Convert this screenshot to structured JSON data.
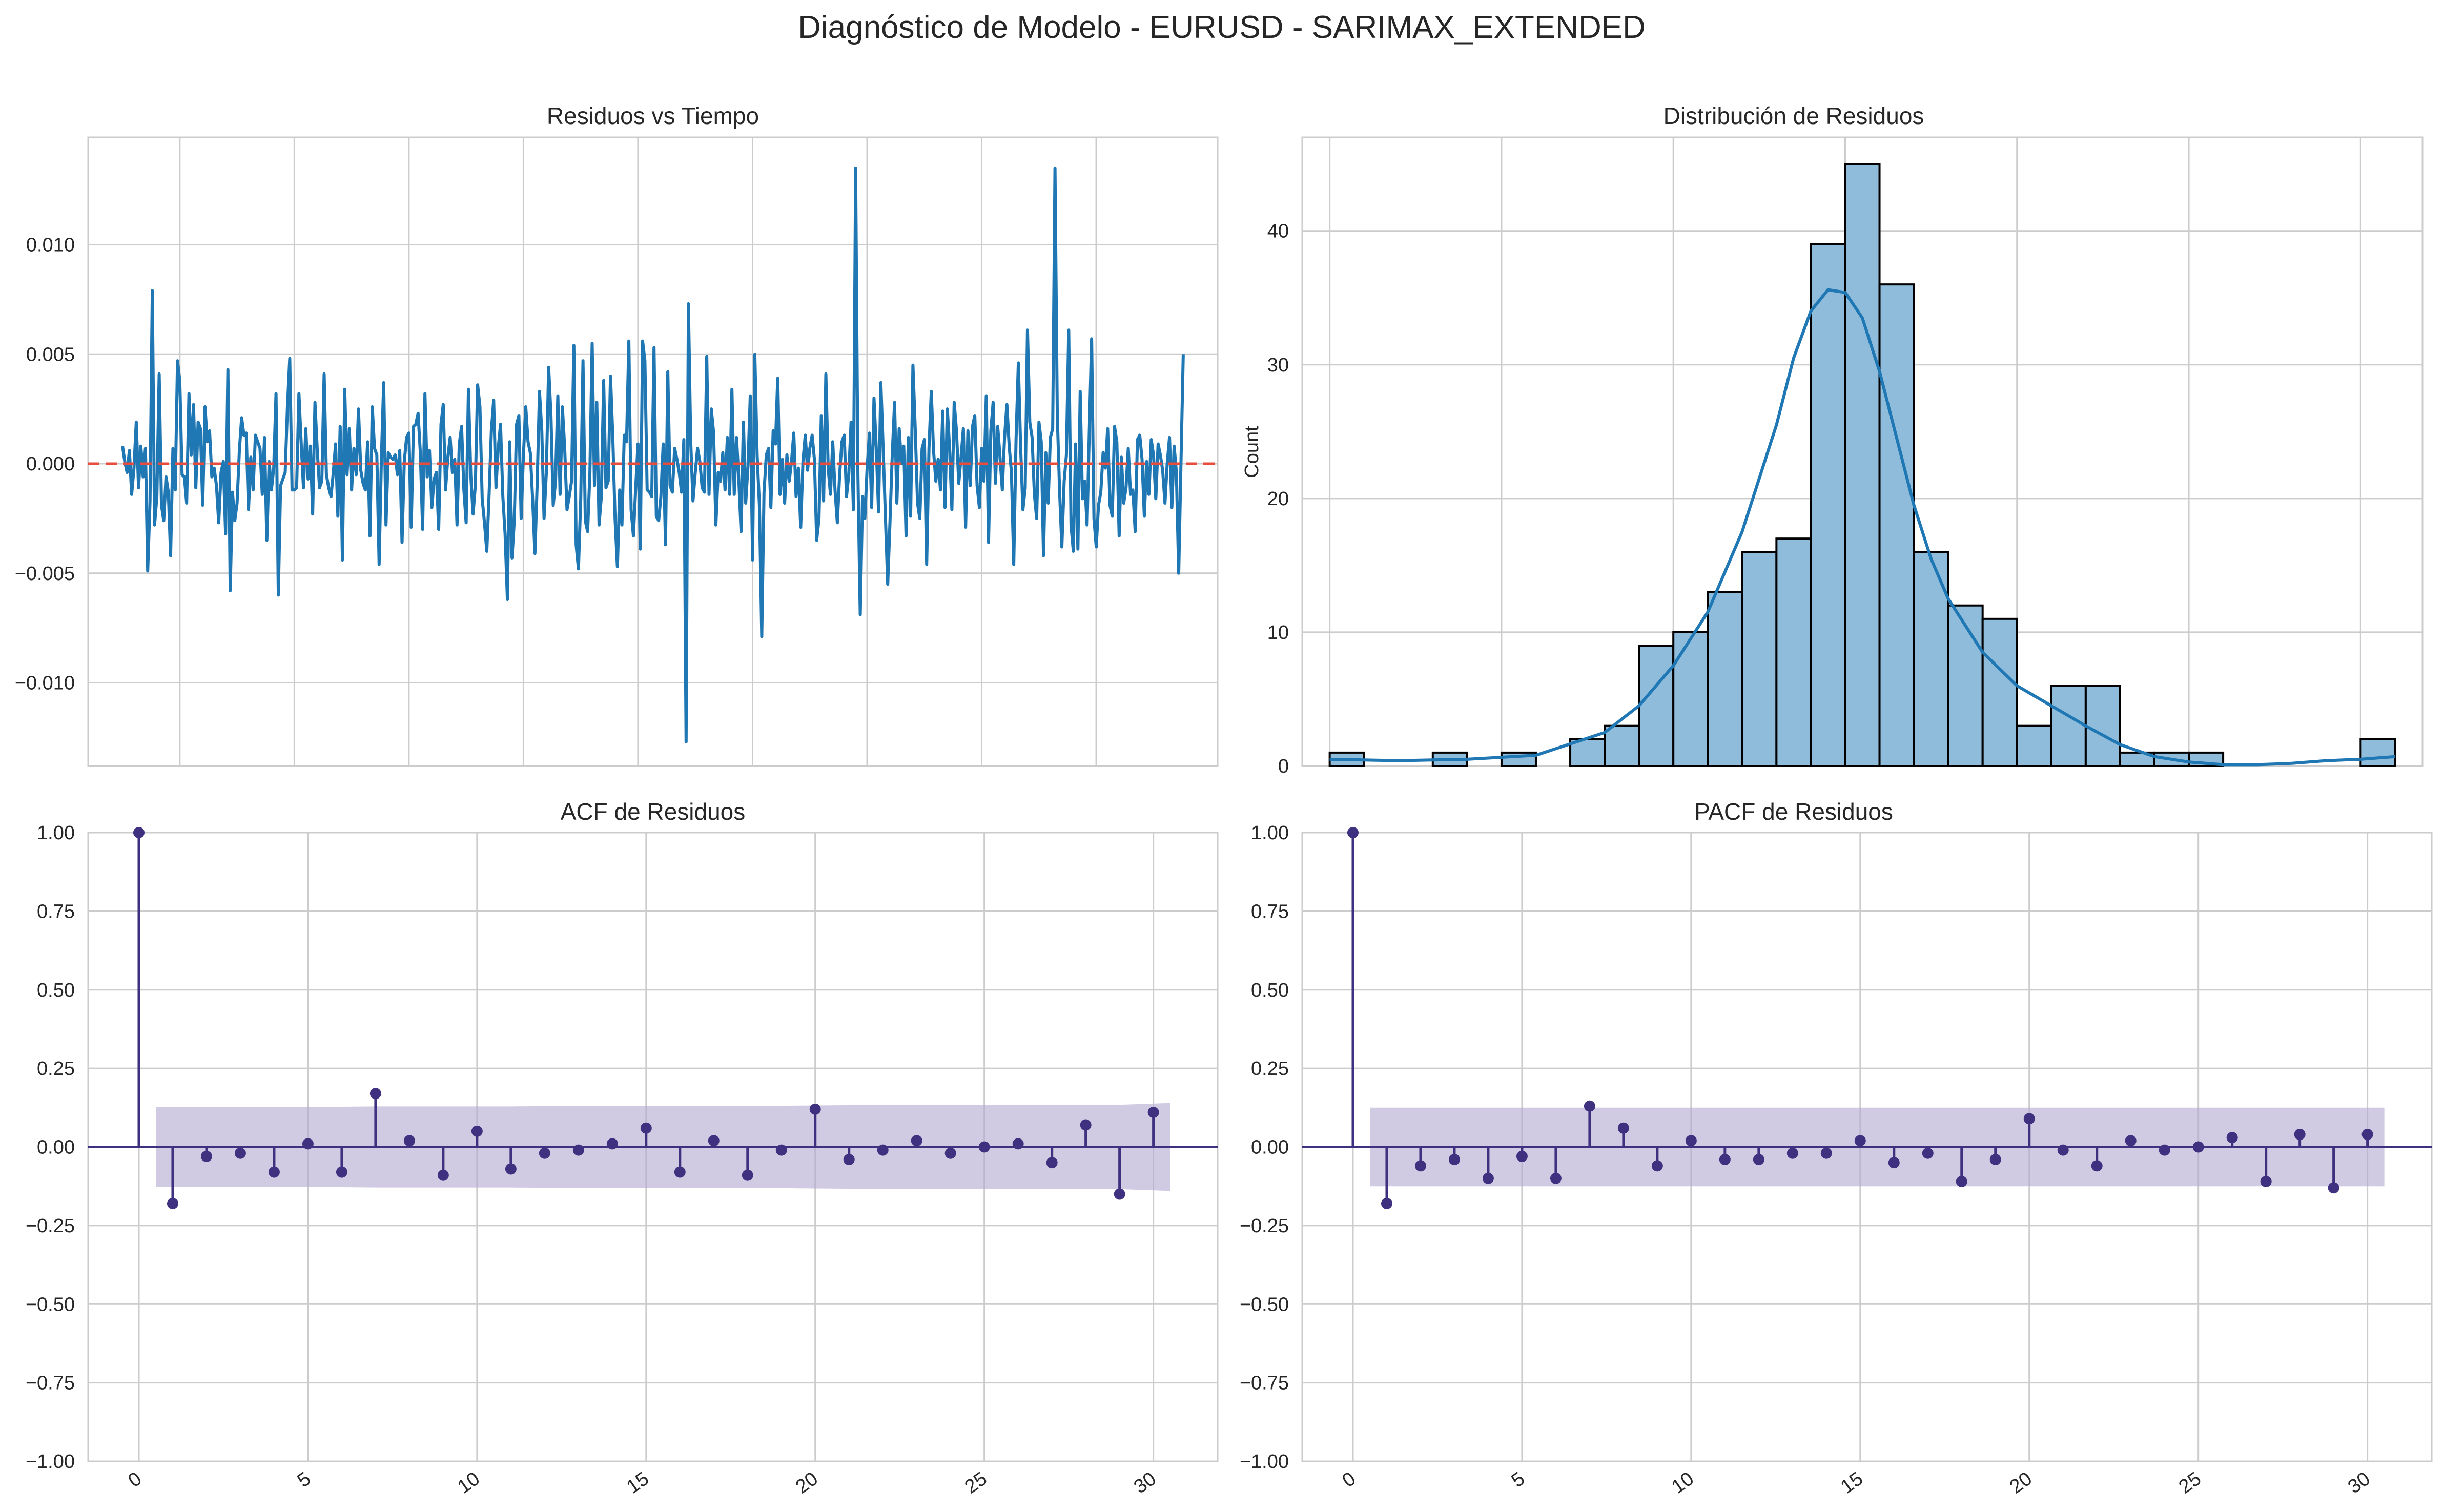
{
  "figure": {
    "title": "Diagnóstico de Modelo - EURUSD - SARIMAX_EXTENDED"
  },
  "chart_data": [
    {
      "id": "residuals",
      "type": "line",
      "title": "Residuos vs Tiempo",
      "xlabel": "",
      "ylabel": "",
      "ylim": [
        -0.0138,
        0.0149
      ],
      "y_ticks": [
        -0.01,
        -0.005,
        0.0,
        0.005,
        0.01
      ],
      "y_tick_labels": [
        "−0.010",
        "−0.005",
        "0.000",
        "0.005",
        "0.010"
      ],
      "grid": true,
      "reference_line": {
        "y": 0.0,
        "style": "dashed",
        "color": "#e74c3c"
      },
      "series_color": "#1f77b4",
      "values": [
        0.0008,
        0.0001,
        -0.0004,
        0.0006,
        -0.0014,
        -0.0002,
        0.0019,
        -0.0011,
        0.0008,
        -0.0006,
        0.0007,
        -0.0049,
        -0.0017,
        0.0079,
        -0.0028,
        -0.0015,
        0.0041,
        -0.0019,
        -0.0026,
        -0.0006,
        -0.0013,
        -0.0042,
        0.0007,
        -0.0012,
        0.0047,
        0.0038,
        -0.0005,
        -0.0006,
        -0.0018,
        0.0032,
        0.0004,
        0.0027,
        -0.0011,
        0.0019,
        0.0016,
        -0.0019,
        0.0026,
        0.001,
        0.0015,
        -0.0006,
        -0.0002,
        -0.001,
        -0.0027,
        -0.0004,
        0.0001,
        -0.0032,
        0.0043,
        -0.0058,
        -0.0013,
        -0.0026,
        -0.0018,
        0.0006,
        0.0021,
        0.0013,
        0.0014,
        -0.0021,
        0.0003,
        -0.0012,
        0.0013,
        0.001,
        0.0007,
        -0.0014,
        0.0012,
        -0.0035,
        0.0001,
        -0.0012,
        -0.0002,
        0.0032,
        -0.006,
        -0.001,
        -0.0007,
        -0.0004,
        0.0026,
        0.0048,
        -0.0012,
        -0.0012,
        -0.0011,
        0.0032,
        0.0009,
        -0.0011,
        0.0016,
        -0.0007,
        0.0008,
        -0.0023,
        0.0028,
        0.0006,
        -0.0011,
        -0.0008,
        0.0041,
        -0.0005,
        -0.0011,
        -0.0015,
        -0.0004,
        0.0009,
        -0.0024,
        0.0017,
        -0.0044,
        0.0034,
        -0.0005,
        0.0016,
        -0.0012,
        0.0007,
        -0.0005,
        0.0025,
        -0.0003,
        -0.0009,
        -0.0012,
        0.001,
        -0.0033,
        0.0026,
        0.0007,
        0.0004,
        -0.0046,
        0.0002,
        0.0037,
        -0.0028,
        0.0005,
        0.0003,
        0.0002,
        0.0004,
        -0.0005,
        0.0006,
        -0.0036,
        0.0001,
        0.0012,
        0.0014,
        -0.0029,
        0.0017,
        0.0018,
        0.0023,
        0.0005,
        -0.003,
        0.0032,
        -0.0006,
        0.0006,
        -0.002,
        -0.0007,
        -0.0004,
        -0.003,
        0.0018,
        0.0027,
        -0.0012,
        0.0003,
        0.0012,
        -0.0004,
        0.0002,
        -0.0028,
        0.0009,
        0.0017,
        -0.0012,
        -0.0027,
        0.0034,
        -0.0005,
        -0.0023,
        -0.001,
        0.0036,
        0.0026,
        -0.0016,
        -0.0027,
        -0.004,
        -0.0014,
        0.0015,
        0.0029,
        -0.0011,
        0.0007,
        0.0018,
        -0.0015,
        -0.0032,
        -0.0062,
        0.001,
        -0.0043,
        -0.0026,
        0.0018,
        0.0022,
        -0.0025,
        0.0004,
        0.0026,
        0.001,
        0.0005,
        -0.0016,
        -0.0041,
        -0.0009,
        0.0033,
        0.0015,
        -0.0025,
        -0.0004,
        0.0044,
        0.0022,
        -0.0019,
        -0.0008,
        0.0031,
        -0.0014,
        0.0026,
        0.0007,
        -0.0021,
        -0.0015,
        -0.0008,
        0.0054,
        -0.0037,
        -0.0048,
        -0.0016,
        0.0047,
        -0.0026,
        -0.0031,
        -0.0004,
        0.0055,
        -0.001,
        0.0028,
        -0.0028,
        -0.0015,
        0.0038,
        -0.0011,
        -0.0008,
        0.004,
        0.0012,
        -0.0025,
        -0.0047,
        -0.0012,
        -0.0028,
        0.0013,
        0.001,
        0.0056,
        -0.0021,
        -0.0033,
        -0.0011,
        0.0009,
        -0.0039,
        0.0056,
        0.0047,
        -0.0012,
        -0.0013,
        -0.0015,
        0.0053,
        -0.0024,
        -0.0026,
        -0.0015,
        0.0009,
        -0.0037,
        0.0042,
        -0.001,
        -0.0013,
        0.0007,
        0.0002,
        -0.0004,
        -0.0013,
        0.0011,
        -0.0127,
        0.0073,
        0.001,
        -0.0017,
        -0.0004,
        0.0007,
        0.0001,
        -0.0011,
        -0.0013,
        0.0049,
        -0.0014,
        0.0025,
        0.0014,
        -0.0028,
        -0.0004,
        -0.0008,
        0.0005,
        -0.0012,
        0.0012,
        -0.0014,
        0.0034,
        -0.0014,
        0.0012,
        -0.0007,
        -0.0031,
        0.0019,
        -0.0018,
        -0.0001,
        0.0031,
        -0.0044,
        0.005,
        0.0004,
        -0.0019,
        -0.0079,
        -0.0013,
        0.0004,
        0.0007,
        -0.002,
        0.0015,
        0.0009,
        0.0039,
        -0.0014,
        0.0002,
        -0.0018,
        0.0004,
        -0.0008,
        0.0001,
        0.0014,
        -0.0015,
        -0.0002,
        -0.0029,
        0.0001,
        0.0013,
        -0.0003,
        0.0007,
        0.0013,
        0.0002,
        -0.0035,
        -0.0025,
        0.0022,
        -0.0017,
        0.0041,
        -0.0002,
        -0.0014,
        0.001,
        -0.0012,
        -0.0027,
        -0.0005,
        0.001,
        0.0013,
        -0.0015,
        -0.0005,
        0.0019,
        -0.0021,
        0.0135,
        -0.0005,
        -0.0069,
        -0.0015,
        -0.0025,
        -0.0002,
        0.0014,
        -0.002,
        0.003,
        0.0007,
        -0.0022,
        0.0037,
        0.0007,
        -0.0025,
        -0.0055,
        -0.0026,
        0.0005,
        0.0028,
        -0.0018,
        0.0016,
        0.0,
        0.0008,
        -0.0033,
        0.0012,
        -0.0024,
        0.0045,
        0.0016,
        -0.0018,
        -0.0025,
        0.0007,
        0.0011,
        -0.0046,
        0.0007,
        0.0033,
        0.0006,
        -0.0008,
        0.0002,
        -0.0012,
        0.0024,
        -0.002,
        0.0025,
        0.0007,
        -0.0021,
        0.0028,
        0.0015,
        -0.0009,
        0.0003,
        0.0016,
        -0.0029,
        0.0015,
        -0.001,
        0.0017,
        0.0022,
        -0.001,
        -0.002,
        0.0007,
        -0.0008,
        0.0031,
        -0.0036,
        0.0015,
        0.0028,
        -0.0009,
        0.0017,
        0.0003,
        -0.0012,
        0.0012,
        0.0027,
        0.0008,
        -0.0004,
        -0.0046,
        0.0011,
        0.0046,
        0.0008,
        -0.0021,
        -0.0011,
        0.0061,
        0.0019,
        0.0012,
        -0.0014,
        -0.0025,
        0.0019,
        0.001,
        -0.0042,
        0.0005,
        -0.0018,
        0.0012,
        0.0016,
        0.0135,
        0.0022,
        -0.0012,
        -0.0038,
        -0.0008,
        0.0004,
        0.0061,
        -0.0028,
        -0.004,
        0.0009,
        -0.0039,
        0.0033,
        -0.0016,
        -0.0008,
        -0.0028,
        0.0015,
        0.0057,
        -0.0025,
        -0.0038,
        -0.0019,
        -0.0013,
        0.0005,
        -0.0002,
        0.0016,
        -0.0019,
        -0.0024,
        0.0017,
        0.001,
        -0.0033,
        0.0003,
        -0.0018,
        -0.0011,
        0.0007,
        -0.0014,
        -0.0012,
        -0.0031,
        0.0011,
        0.0013,
        0.0002,
        -0.0024,
        0.0001,
        -0.0014,
        0.0011,
        0.0004,
        -0.0016,
        0.0009,
        0.0004,
        -0.0003,
        -0.0018,
        0.0,
        0.0012,
        -0.002,
        0.0008,
        -0.0004,
        -0.005,
        0.0001,
        0.005
      ]
    },
    {
      "id": "distribution",
      "type": "bar",
      "title": "Distribución de Residuos",
      "xlabel": "",
      "ylabel": "Count",
      "ylim": [
        0,
        47
      ],
      "y_ticks": [
        0,
        10,
        20,
        30,
        40
      ],
      "y_tick_labels": [
        "0",
        "10",
        "20",
        "30",
        "40"
      ],
      "x_grid_values": [
        0,
        5,
        10,
        15,
        20,
        25,
        30
      ],
      "xlim": [
        -0.8,
        31.8
      ],
      "bin_edges": [
        0,
        1,
        2,
        3,
        4,
        5,
        6,
        7,
        8,
        9,
        10,
        11,
        12,
        13,
        14,
        15,
        16,
        17,
        18,
        19,
        20,
        21,
        22,
        23,
        24,
        25,
        26,
        27,
        28,
        29,
        30,
        31
      ],
      "counts": [
        1,
        0,
        0,
        1,
        0,
        1,
        0,
        2,
        3,
        9,
        10,
        13,
        16,
        17,
        39,
        45,
        36,
        16,
        12,
        11,
        3,
        6,
        6,
        1,
        1,
        1,
        0,
        0,
        0,
        0,
        2
      ],
      "grid": true,
      "bar_color": "#8fbcdb",
      "edge_color": "#000000",
      "kde": {
        "color": "#1f77b4",
        "points": [
          [
            0,
            0.5
          ],
          [
            2,
            0.4
          ],
          [
            4,
            0.5
          ],
          [
            6,
            0.8
          ],
          [
            8,
            2.5
          ],
          [
            9,
            4.5
          ],
          [
            10,
            7.5
          ],
          [
            11,
            11.5
          ],
          [
            12,
            17.5
          ],
          [
            13,
            25.5
          ],
          [
            13.5,
            30.5
          ],
          [
            14,
            34
          ],
          [
            14.5,
            35.6
          ],
          [
            15,
            35.4
          ],
          [
            15.5,
            33.5
          ],
          [
            16,
            29.5
          ],
          [
            16.5,
            24.5
          ],
          [
            17,
            19.5
          ],
          [
            17.5,
            15.5
          ],
          [
            18,
            12.5
          ],
          [
            19,
            8.5
          ],
          [
            20,
            6
          ],
          [
            21,
            4.5
          ],
          [
            22,
            3
          ],
          [
            23,
            1.6
          ],
          [
            24,
            0.7
          ],
          [
            25,
            0.3
          ],
          [
            26,
            0.1
          ],
          [
            27,
            0.1
          ],
          [
            28,
            0.2
          ],
          [
            29,
            0.4
          ],
          [
            30,
            0.5
          ],
          [
            31,
            0.7
          ]
        ]
      }
    },
    {
      "id": "acf",
      "type": "scatter",
      "title": "ACF de Residuos",
      "xlabel": "",
      "ylabel": "",
      "xlim": [
        -1.5,
        31.9
      ],
      "ylim": [
        -1.0,
        1.0
      ],
      "x_ticks": [
        0,
        5,
        10,
        15,
        20,
        25,
        30
      ],
      "x_tick_labels": [
        "0",
        "5",
        "10",
        "15",
        "20",
        "25",
        "30"
      ],
      "y_ticks": [
        -1.0,
        -0.75,
        -0.5,
        -0.25,
        0.0,
        0.25,
        0.5,
        0.75,
        1.0
      ],
      "y_tick_labels": [
        "−1.00",
        "−0.75",
        "−0.50",
        "−0.25",
        "0.00",
        "0.25",
        "0.50",
        "0.75",
        "1.00"
      ],
      "grid": true,
      "color": "#3f3180",
      "confidence_color": "#b0a6cf",
      "lags": [
        0,
        1,
        2,
        3,
        4,
        5,
        6,
        7,
        8,
        9,
        10,
        11,
        12,
        13,
        14,
        15,
        16,
        17,
        18,
        19,
        20,
        21,
        22,
        23,
        24,
        25,
        26,
        27,
        28,
        29,
        30
      ],
      "values": [
        1.0,
        -0.18,
        -0.03,
        -0.02,
        -0.08,
        0.01,
        -0.08,
        0.17,
        0.02,
        -0.09,
        0.05,
        -0.07,
        -0.02,
        -0.01,
        0.01,
        0.06,
        -0.08,
        0.02,
        -0.09,
        -0.01,
        0.12,
        -0.04,
        -0.01,
        0.02,
        -0.02,
        0.0,
        0.01,
        -0.05,
        0.07,
        -0.15,
        0.11
      ],
      "confidence_band": [
        0.125,
        0.127,
        0.127,
        0.127,
        0.127,
        0.127,
        0.128,
        0.129,
        0.129,
        0.129,
        0.129,
        0.129,
        0.13,
        0.13,
        0.13,
        0.13,
        0.131,
        0.131,
        0.131,
        0.131,
        0.132,
        0.133,
        0.133,
        0.133,
        0.133,
        0.133,
        0.133,
        0.133,
        0.133,
        0.134,
        0.14
      ]
    },
    {
      "id": "pacf",
      "type": "scatter",
      "title": "PACF de Residuos",
      "xlabel": "",
      "ylabel": "",
      "xlim": [
        -1.5,
        31.9
      ],
      "ylim": [
        -1.0,
        1.0
      ],
      "x_ticks": [
        0,
        5,
        10,
        15,
        20,
        25,
        30
      ],
      "x_tick_labels": [
        "0",
        "5",
        "10",
        "15",
        "20",
        "25",
        "30"
      ],
      "y_ticks": [
        -1.0,
        -0.75,
        -0.5,
        -0.25,
        0.0,
        0.25,
        0.5,
        0.75,
        1.0
      ],
      "y_tick_labels": [
        "−1.00",
        "−0.75",
        "−0.50",
        "−0.25",
        "0.00",
        "0.25",
        "0.50",
        "0.75",
        "1.00"
      ],
      "grid": true,
      "color": "#3f3180",
      "confidence_color": "#b0a6cf",
      "lags": [
        0,
        1,
        2,
        3,
        4,
        5,
        6,
        7,
        8,
        9,
        10,
        11,
        12,
        13,
        14,
        15,
        16,
        17,
        18,
        19,
        20,
        21,
        22,
        23,
        24,
        25,
        26,
        27,
        28,
        29,
        30
      ],
      "values": [
        1.0,
        -0.18,
        -0.06,
        -0.04,
        -0.1,
        -0.03,
        -0.1,
        0.13,
        0.06,
        -0.06,
        0.02,
        -0.04,
        -0.04,
        -0.02,
        -0.02,
        0.02,
        -0.05,
        -0.02,
        -0.11,
        -0.04,
        0.09,
        -0.01,
        -0.06,
        0.02,
        -0.01,
        0.0,
        0.03,
        -0.11,
        0.04,
        -0.13,
        0.04
      ],
      "confidence_band": [
        0.125,
        0.125,
        0.125,
        0.125,
        0.125,
        0.125,
        0.125,
        0.125,
        0.125,
        0.125,
        0.125,
        0.125,
        0.125,
        0.125,
        0.125,
        0.125,
        0.125,
        0.125,
        0.125,
        0.125,
        0.125,
        0.125,
        0.125,
        0.125,
        0.125,
        0.125,
        0.125,
        0.125,
        0.125,
        0.125,
        0.125
      ]
    }
  ]
}
